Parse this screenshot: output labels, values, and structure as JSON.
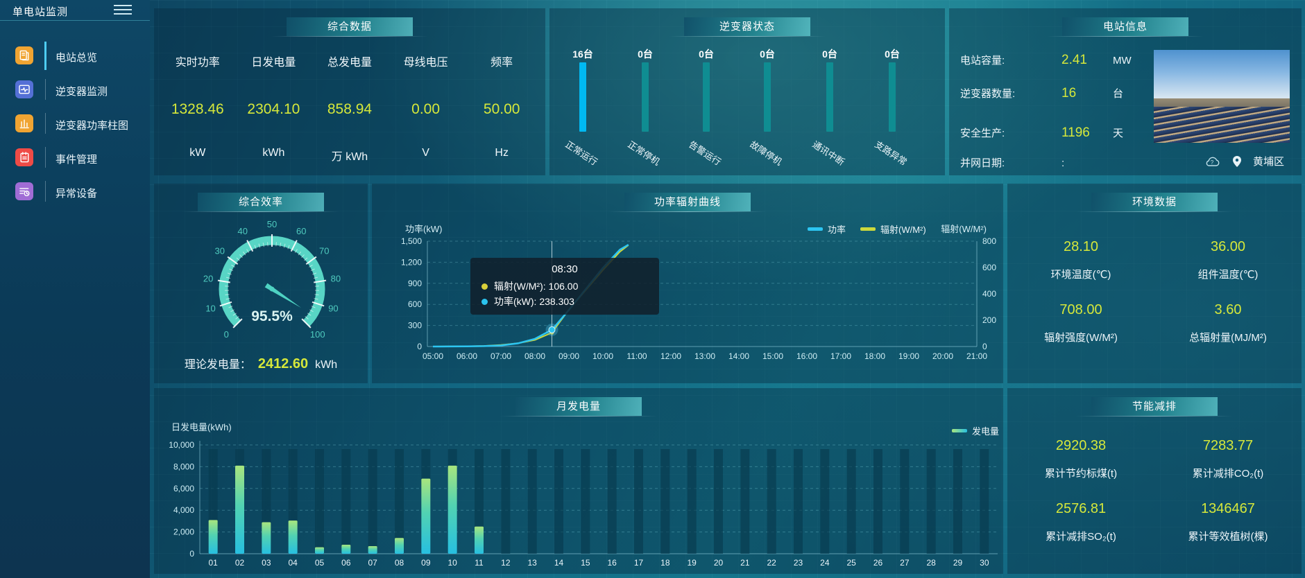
{
  "app": {
    "title": "单电站监测"
  },
  "colors": {
    "accent_yellow": "#d6e83a",
    "bright_blue_bar": "#00b9f2",
    "teal_bar": "#0f8d92",
    "power_line": "#2cc5f2",
    "radiation_line": "#ccd83c",
    "gauge_teal": "#58d5c5"
  },
  "sidebar": {
    "items": [
      {
        "label": "电站总览",
        "icon": "overview-doc-icon",
        "color": "#f0a432",
        "active": true
      },
      {
        "label": "逆变器监测",
        "icon": "inverter-monitor-icon",
        "color": "#5470d6",
        "active": false
      },
      {
        "label": "逆变器功率柱图",
        "icon": "power-bars-icon",
        "color": "#f0a432",
        "active": false
      },
      {
        "label": "事件管理",
        "icon": "event-notebook-icon",
        "color": "#ef4b46",
        "active": false
      },
      {
        "label": "异常设备",
        "icon": "abnormal-device-icon",
        "color": "#a06cd5",
        "active": false
      }
    ]
  },
  "summary": {
    "title": "综合数据",
    "stats": [
      {
        "label": "实时功率",
        "value": "1328.46",
        "unit": "kW"
      },
      {
        "label": "日发电量",
        "value": "2304.10",
        "unit": "kWh"
      },
      {
        "label": "总发电量",
        "value": "858.94",
        "unit": "万 kWh"
      },
      {
        "label": "母线电压",
        "value": "0.00",
        "unit": "V"
      },
      {
        "label": "频率",
        "value": "50.00",
        "unit": "Hz"
      }
    ]
  },
  "inverter_status": {
    "title": "逆变器状态",
    "bars": [
      {
        "count": "16台",
        "label": "正常运行",
        "color": "#00b9f2"
      },
      {
        "count": "0台",
        "label": "正常停机",
        "color": "#0f8d92"
      },
      {
        "count": "0台",
        "label": "告警运行",
        "color": "#0f8d92"
      },
      {
        "count": "0台",
        "label": "故障停机",
        "color": "#0f8d92"
      },
      {
        "count": "0台",
        "label": "通讯中断",
        "color": "#0f8d92"
      },
      {
        "count": "0台",
        "label": "支路异常",
        "color": "#0f8d92"
      }
    ]
  },
  "station_info": {
    "title": "电站信息",
    "rows": [
      {
        "label": "电站容量:",
        "value": "2.41",
        "unit": "MW",
        "plain": false
      },
      {
        "label": "逆变器数量:",
        "value": "16",
        "unit": "台",
        "plain": false
      },
      {
        "label": "安全生产:",
        "value": "1196",
        "unit": "天",
        "plain": false
      },
      {
        "label": "并网日期:",
        "value": ":",
        "unit": "",
        "plain": true
      }
    ],
    "location": "黄埔区"
  },
  "efficiency": {
    "title": "综合效率",
    "gauge": {
      "min": 0,
      "max": 100,
      "ticks": [
        0,
        10,
        20,
        30,
        40,
        50,
        60,
        70,
        80,
        90,
        100
      ],
      "value": 95.5,
      "value_label": "95.5%"
    },
    "theory_label": "理论发电量：",
    "theory_value": "2412.60",
    "theory_unit": "kWh"
  },
  "power_curve": {
    "title": "功率辐射曲线",
    "ylabel_left": "功率(kW)",
    "ylabel_right": "辐射(W/M²)",
    "legend_power": "功率",
    "legend_radiation": "辐射(W/M²)",
    "tooltip": {
      "time": "08:30",
      "items": [
        {
          "color": "#d8cf3a",
          "text": "辐射(W/M²): 106.00"
        },
        {
          "color": "#2ac3ee",
          "text": "功率(kW): 238.303"
        }
      ]
    }
  },
  "environment": {
    "title": "环境数据",
    "cells": [
      {
        "value": "28.10",
        "label": "环境温度(℃)"
      },
      {
        "value": "36.00",
        "label": "组件温度(℃)"
      },
      {
        "value": "708.00",
        "label": "辐射强度(W/M²)"
      },
      {
        "value": "3.60",
        "label": "总辐射量(MJ/M²)"
      }
    ]
  },
  "monthly": {
    "title": "月发电量",
    "ylabel": "日发电量(kWh)",
    "legend": "发电量"
  },
  "saving": {
    "title": "节能减排",
    "cells": [
      {
        "value": "2920.38",
        "label": "累计节约标煤(t)"
      },
      {
        "value": "7283.77",
        "label": "累计减排CO₂(t)"
      },
      {
        "value": "2576.81",
        "label": "累计减排SO₂(t)"
      },
      {
        "value": "1346467",
        "label": "累计等效植树(棵)"
      }
    ]
  },
  "chart_data": [
    {
      "id": "inverter_status",
      "type": "bar",
      "title": "逆变器状态",
      "categories": [
        "正常运行",
        "正常停机",
        "告警运行",
        "故障停机",
        "通讯中断",
        "支路异常"
      ],
      "values": [
        16,
        0,
        0,
        0,
        0,
        0
      ],
      "unit": "台"
    },
    {
      "id": "efficiency_gauge",
      "type": "gauge",
      "title": "综合效率",
      "min": 0,
      "max": 100,
      "value": 95.5,
      "unit": "%"
    },
    {
      "id": "power_radiation",
      "type": "line",
      "title": "功率辐射曲线",
      "x": [
        "05:00",
        "06:00",
        "07:00",
        "08:00",
        "09:00",
        "10:00",
        "11:00",
        "12:00",
        "13:00",
        "14:00",
        "15:00",
        "16:00",
        "17:00",
        "18:00",
        "19:00",
        "20:00",
        "21:00"
      ],
      "ylim_left": [
        0,
        1500
      ],
      "yticks_left": [
        "1,500",
        "1,200",
        "900",
        "600",
        "300",
        "0"
      ],
      "ylim_right": [
        0,
        800
      ],
      "yticks_right": [
        "800",
        "600",
        "400",
        "200",
        "0"
      ],
      "series": [
        {
          "name": "功率",
          "axis": "left",
          "unit": "kW",
          "points": [
            [
              5,
              0
            ],
            [
              5.5,
              1
            ],
            [
              6,
              3
            ],
            [
              6.5,
              6
            ],
            [
              7,
              15
            ],
            [
              7.5,
              45
            ],
            [
              8,
              110
            ],
            [
              8.5,
              238.3
            ],
            [
              9,
              520
            ],
            [
              9.5,
              820
            ],
            [
              10,
              1120
            ],
            [
              10.5,
              1380
            ],
            [
              10.75,
              1450
            ]
          ]
        },
        {
          "name": "辐射(W/M²)",
          "axis": "right",
          "unit": "W/M²",
          "points": [
            [
              5,
              0
            ],
            [
              5.5,
              1
            ],
            [
              6,
              2
            ],
            [
              6.5,
              5
            ],
            [
              7,
              12
            ],
            [
              7.5,
              25
            ],
            [
              8,
              50
            ],
            [
              8.5,
              106
            ],
            [
              9,
              280
            ],
            [
              9.5,
              430
            ],
            [
              10,
              580
            ],
            [
              10.5,
              720
            ],
            [
              10.75,
              770
            ]
          ]
        }
      ],
      "hover": {
        "time_h": 8.5,
        "power": 238.303,
        "radiation": 106.0
      }
    },
    {
      "id": "monthly_energy",
      "type": "bar",
      "title": "月发电量",
      "ylabel": "日发电量(kWh)",
      "ylim": [
        0,
        10000
      ],
      "yticks": [
        "10,000",
        "8,000",
        "6,000",
        "4,000",
        "2,000",
        "0"
      ],
      "categories": [
        "01",
        "02",
        "03",
        "04",
        "05",
        "06",
        "07",
        "08",
        "09",
        "10",
        "11",
        "12",
        "13",
        "14",
        "15",
        "16",
        "17",
        "18",
        "19",
        "20",
        "21",
        "22",
        "23",
        "24",
        "25",
        "26",
        "27",
        "28",
        "29",
        "30"
      ],
      "values": [
        3100,
        8100,
        2900,
        3050,
        600,
        830,
        700,
        1450,
        6900,
        8100,
        2500,
        0,
        0,
        0,
        0,
        0,
        0,
        0,
        0,
        0,
        0,
        0,
        0,
        0,
        0,
        0,
        0,
        0,
        0,
        0
      ],
      "legend": "发电量"
    }
  ]
}
